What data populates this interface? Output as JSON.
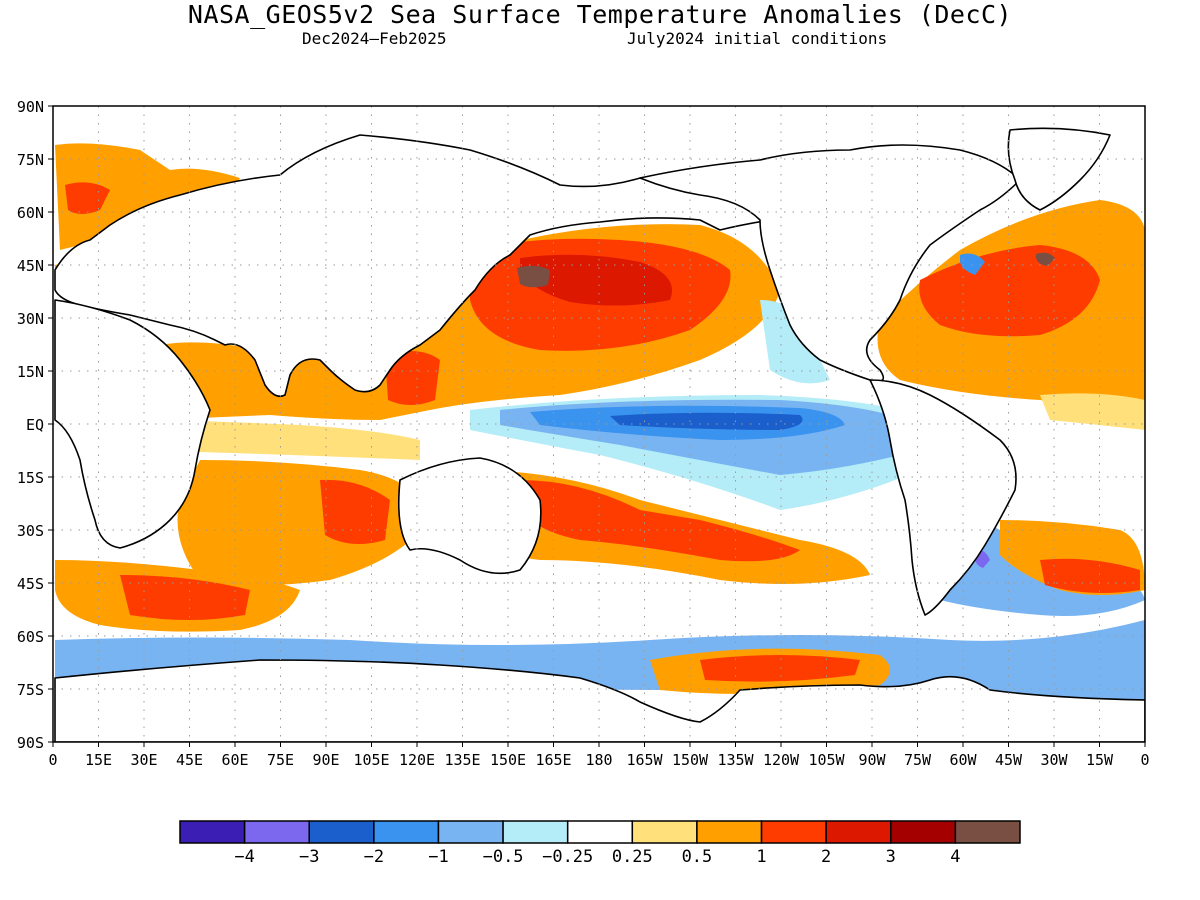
{
  "header": {
    "title": "NASA_GEOS5v2 Sea Surface Temperature Anomalies (DecC)",
    "period": "Dec2024—Feb2025",
    "init": "July2024 initial conditions"
  },
  "map": {
    "lat_labels": [
      "90N",
      "75N",
      "60N",
      "45N",
      "30N",
      "15N",
      "EQ",
      "15S",
      "30S",
      "45S",
      "60S",
      "75S",
      "90S"
    ],
    "lon_labels": [
      "0",
      "15E",
      "30E",
      "45E",
      "60E",
      "75E",
      "90E",
      "105E",
      "120E",
      "135E",
      "150E",
      "165E",
      "180",
      "165W",
      "150W",
      "135W",
      "120W",
      "105W",
      "90W",
      "75W",
      "60W",
      "45W",
      "30W",
      "15W",
      "0"
    ]
  },
  "colorbar": {
    "colors": [
      "#3b1fb5",
      "#7b68ee",
      "#1a5fcc",
      "#3a93ef",
      "#79b4f2",
      "#b4ecf7",
      "#ffffff",
      "#ffe07a",
      "#ffa000",
      "#ff3c00",
      "#dc1800",
      "#a50000",
      "#7a4f43"
    ],
    "labels": [
      "−4",
      "−3",
      "−2",
      "−1",
      "−0.5",
      "−0.25",
      "0.25",
      "0.5",
      "1",
      "2",
      "3",
      "4"
    ]
  },
  "legend_labels": {
    "anomaly_units": "DecC"
  }
}
